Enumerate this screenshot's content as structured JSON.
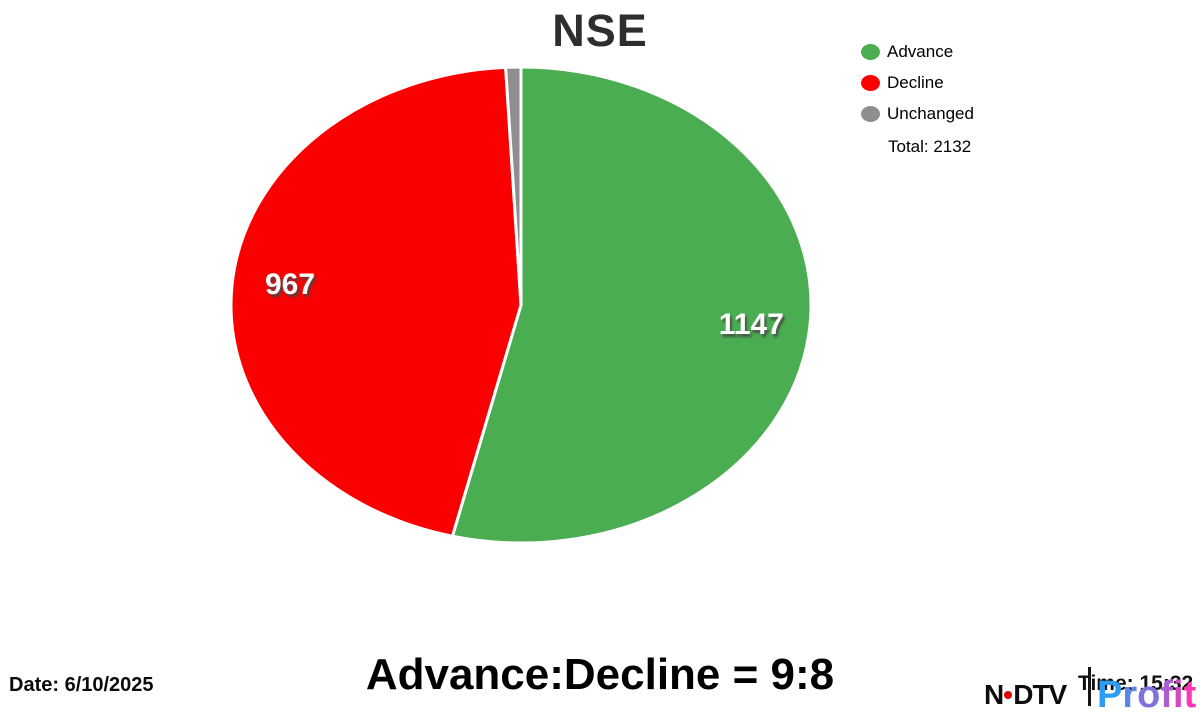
{
  "chart_data": {
    "type": "pie",
    "title": "NSE",
    "labels": [
      "Advance",
      "Decline",
      "Unchanged"
    ],
    "values": [
      1147,
      967,
      18
    ],
    "colors": [
      "#4bad52",
      "#fb0000",
      "#8e8e8e"
    ],
    "slice_labels": [
      "1147",
      "967",
      ""
    ],
    "total": 2132,
    "total_label": "Total: 2132",
    "legend_position": "top-right",
    "start_angle": "top",
    "direction": "clockwise",
    "annotation": "Advance:Decline = 9:8"
  },
  "footer": {
    "date_label": "Date: 6/10/2025",
    "time_label": "Time: 15:32"
  },
  "branding": {
    "ndtv_part1": "N",
    "ndtv_part2": "DTV",
    "dot_color": "#e60000",
    "separator_color": "#151515",
    "profit_text": "Profit",
    "profit_gradient": [
      "#2d9cf5",
      "#ff35b7"
    ]
  }
}
